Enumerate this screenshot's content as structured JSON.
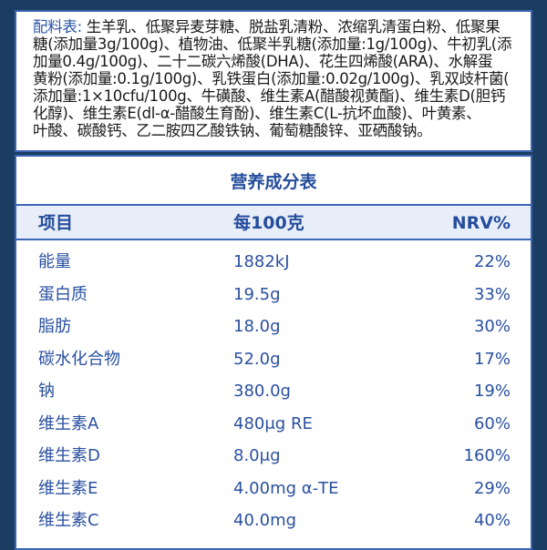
{
  "ingredients": {
    "label": "配料表:",
    "lines": [
      " 生羊乳、低聚异麦芽糖、脱盐乳清粉、浓缩乳清蛋白粉、低聚果",
      "糖(添加量3g/100g)、植物油、低聚半乳糖(添加量:1g/100g)、牛初乳(添",
      "加量0.4g/100g)、二十二碳六烯酸(DHA)、花生四烯酸(ARA)、水解蛋",
      "黄粉(添加量:0.1g/100g)、乳铁蛋白(添加量:0.02g/100g)、乳双歧杆菌(",
      "添加量:1×10cfu/100g、牛磺酸、维生素A(醋酸视黄酯)、维生素D(胆钙",
      "化醇)、维生素E(dl-α-醋酸生育酚)、维生素C(L-抗坏血酸)、叶黄素、",
      "叶酸、碳酸钙、乙二胺四乙酸铁钠、葡萄糖酸锌、亚硒酸钠。"
    ]
  },
  "nutrition": {
    "title": "营养成分表",
    "headers": [
      "项目",
      "每100克",
      "NRV%"
    ],
    "rows": [
      [
        "能量",
        "1882kJ",
        "22%"
      ],
      [
        "蛋白质",
        "19.5g",
        "33%"
      ],
      [
        "脂肪",
        "18.0g",
        "30%"
      ],
      [
        "碳水化合物",
        "52.0g",
        "17%"
      ],
      [
        "钠",
        "380.0g",
        "19%"
      ],
      [
        "维生素A",
        "480μg RE",
        "60%"
      ],
      [
        "维生素D",
        "8.0μg",
        "160%"
      ],
      [
        "维生素E",
        "4.00mg α-TE",
        "29%"
      ],
      [
        "维生素C",
        "40.0mg",
        "40%"
      ]
    ]
  },
  "colors": {
    "background": "#1b3d62",
    "accent": "#244d9c",
    "header_fill": "#e8eef9"
  }
}
